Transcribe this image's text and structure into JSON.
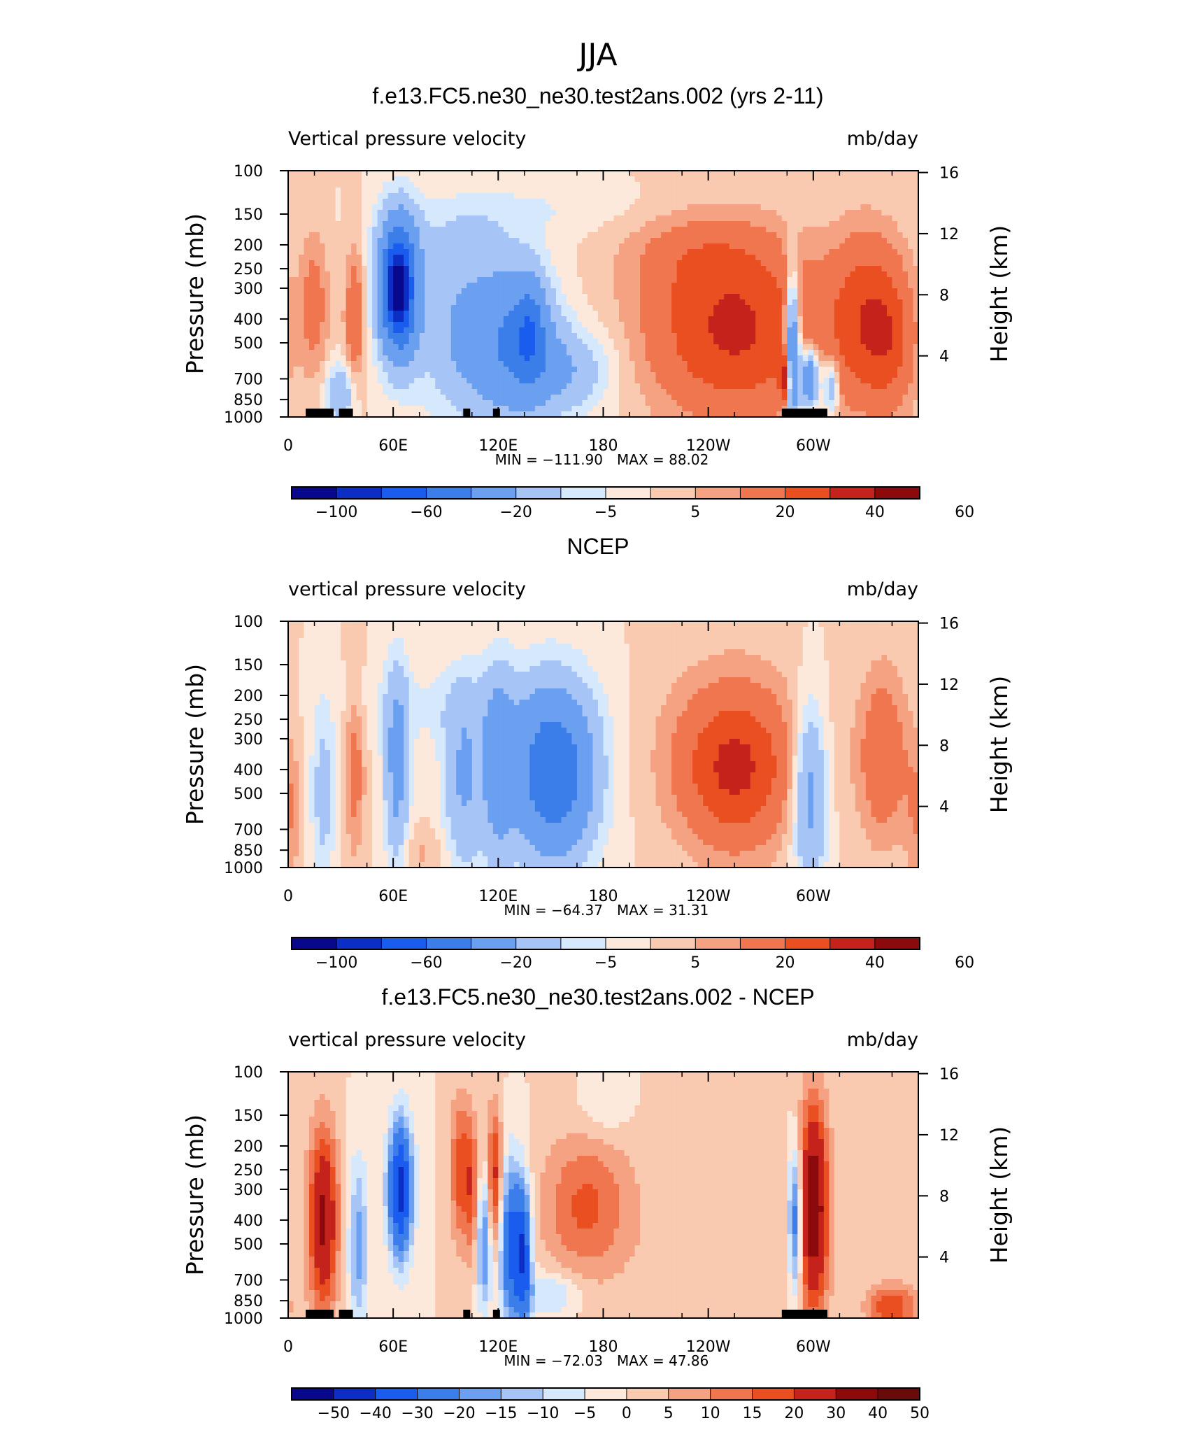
{
  "figure_title": "JJA",
  "colors": {
    "shades_11": [
      "#08088c",
      "#0c2ec4",
      "#1a5cee",
      "#3b7eea",
      "#6b9ff0",
      "#a6c5f6",
      "#d6e8fb",
      "#fde9db",
      "#f9c9b0",
      "#f5a283",
      "#f0764f",
      "#ea4f22",
      "#c4221a",
      "#8c0a0c"
    ],
    "diff_scale": [
      "#08088c",
      "#0c2ec4",
      "#1a5cee",
      "#3b7eea",
      "#6b9ff0",
      "#a6c5f6",
      "#d6e8fb",
      "#fde9db",
      "#f9c9b0",
      "#f5a283",
      "#f0764f",
      "#ea4f22",
      "#c4221a",
      "#8c0a0c",
      "#6a0a0a"
    ],
    "land": "#000000"
  },
  "chart_data": [
    {
      "type": "heatmap",
      "title": "f.e13.FC5.ne30_ne30.test2ans.002 (yrs 2-11)",
      "left_label": "Vertical pressure velocity",
      "right_label": "mb/day",
      "xlabel": "",
      "ylabel": "Pressure (mb)",
      "ylabel_right": "Height (km)",
      "x_ticks": [
        "0",
        "60E",
        "120E",
        "180",
        "120W",
        "60W"
      ],
      "y_ticks": [
        "100",
        "150",
        "200",
        "250",
        "300",
        "400",
        "500",
        "700",
        "850",
        "1000"
      ],
      "y_ticks_right": [
        "16",
        "12",
        "8",
        "4"
      ],
      "min_label": "MIN = −111.90",
      "max_label": "MAX =  88.02",
      "stats": {
        "min": -111.9,
        "max": 88.02
      },
      "colorbar_labels": [
        "−100",
        "−60",
        "−20",
        "−5",
        "5",
        "20",
        "40",
        "60"
      ],
      "blobs": [
        {
          "lon": 63,
          "p": 300,
          "w": 8,
          "h": 0.55,
          "v": -75
        },
        {
          "lon": 63,
          "p": 300,
          "w": 4,
          "h": 0.3,
          "v": -50
        },
        {
          "lon": 130,
          "p": 500,
          "w": 16,
          "h": 0.6,
          "v": -35
        },
        {
          "lon": 138,
          "p": 450,
          "w": 6,
          "h": 0.4,
          "v": -30
        },
        {
          "lon": 100,
          "p": 450,
          "w": 18,
          "h": 0.7,
          "v": -20
        },
        {
          "lon": 160,
          "p": 650,
          "w": 18,
          "h": 0.35,
          "v": -18
        },
        {
          "lon": 95,
          "p": 180,
          "w": 30,
          "h": 0.3,
          "v": -6
        },
        {
          "lon": 150,
          "p": 140,
          "w": 40,
          "h": 0.2,
          "v": -4
        },
        {
          "lon": 30,
          "p": 800,
          "w": 6,
          "h": 0.25,
          "v": -20
        },
        {
          "lon": 255,
          "p": 450,
          "w": 35,
          "h": 0.7,
          "v": 32
        },
        {
          "lon": 235,
          "p": 220,
          "w": 30,
          "h": 0.35,
          "v": 10
        },
        {
          "lon": 330,
          "p": 400,
          "w": 15,
          "h": 0.7,
          "v": 25
        },
        {
          "lon": 345,
          "p": 500,
          "w": 10,
          "h": 0.6,
          "v": 14
        },
        {
          "lon": 15,
          "p": 350,
          "w": 6,
          "h": 0.6,
          "v": 14
        },
        {
          "lon": 38,
          "p": 400,
          "w": 4,
          "h": 0.6,
          "v": 18
        },
        {
          "lon": 288,
          "p": 550,
          "w": 3,
          "h": 0.6,
          "v": -55
        },
        {
          "lon": 298,
          "p": 700,
          "w": 4,
          "h": 0.25,
          "v": -45
        },
        {
          "lon": 310,
          "p": 750,
          "w": 3,
          "h": 0.25,
          "v": -25
        },
        {
          "lon": 284,
          "p": 700,
          "w": 2,
          "h": 0.2,
          "v": 40
        }
      ],
      "land_spans": [
        [
          10,
          26
        ],
        [
          29,
          37
        ],
        [
          100,
          104
        ],
        [
          117,
          121
        ],
        [
          282,
          308
        ]
      ]
    },
    {
      "type": "heatmap",
      "title": "NCEP",
      "left_label": "vertical pressure velocity",
      "right_label": "mb/day",
      "xlabel": "",
      "ylabel": "Pressure (mb)",
      "ylabel_right": "Height (km)",
      "x_ticks": [
        "0",
        "60E",
        "120E",
        "180",
        "120W",
        "60W"
      ],
      "y_ticks": [
        "100",
        "150",
        "200",
        "250",
        "300",
        "400",
        "500",
        "700",
        "850",
        "1000"
      ],
      "y_ticks_right": [
        "16",
        "12",
        "8",
        "4"
      ],
      "min_label": "MIN = −64.37",
      "max_label": "MAX =  31.31",
      "stats": {
        "min": -64.37,
        "max": 31.31
      },
      "colorbar_labels": [
        "−100",
        "−60",
        "−20",
        "−5",
        "5",
        "20",
        "40",
        "60"
      ],
      "blobs": [
        {
          "lon": 152,
          "p": 420,
          "w": 14,
          "h": 0.6,
          "v": -40
        },
        {
          "lon": 150,
          "p": 400,
          "w": 22,
          "h": 0.8,
          "v": -20
        },
        {
          "lon": 120,
          "p": 400,
          "w": 6,
          "h": 0.8,
          "v": -22
        },
        {
          "lon": 100,
          "p": 450,
          "w": 8,
          "h": 0.75,
          "v": -20
        },
        {
          "lon": 62,
          "p": 400,
          "w": 5,
          "h": 0.85,
          "v": -25
        },
        {
          "lon": 20,
          "p": 500,
          "w": 5,
          "h": 0.7,
          "v": -14
        },
        {
          "lon": 298,
          "p": 500,
          "w": 7,
          "h": 0.75,
          "v": -28
        },
        {
          "lon": 90,
          "p": 220,
          "w": 40,
          "h": 0.35,
          "v": -6
        },
        {
          "lon": 255,
          "p": 400,
          "w": 20,
          "h": 0.6,
          "v": 24
        },
        {
          "lon": 255,
          "p": 350,
          "w": 35,
          "h": 0.8,
          "v": 10
        },
        {
          "lon": 340,
          "p": 350,
          "w": 10,
          "h": 0.7,
          "v": 18
        },
        {
          "lon": 38,
          "p": 400,
          "w": 4,
          "h": 0.7,
          "v": 14
        },
        {
          "lon": 0,
          "p": 600,
          "w": 5,
          "h": 0.6,
          "v": 10
        },
        {
          "lon": 75,
          "p": 880,
          "w": 10,
          "h": 0.2,
          "v": 6
        }
      ],
      "land_spans": []
    },
    {
      "type": "heatmap",
      "title": "f.e13.FC5.ne30_ne30.test2ans.002 - NCEP",
      "left_label": "vertical pressure velocity",
      "right_label": "mb/day",
      "xlabel": "",
      "ylabel": "Pressure (mb)",
      "ylabel_right": "Height (km)",
      "x_ticks": [
        "0",
        "60E",
        "120E",
        "180",
        "120W",
        "60W"
      ],
      "y_ticks": [
        "100",
        "150",
        "200",
        "250",
        "300",
        "400",
        "500",
        "700",
        "850",
        "1000"
      ],
      "y_ticks_right": [
        "16",
        "12",
        "8",
        "4"
      ],
      "min_label": "MIN = −72.03",
      "max_label": "MAX =  47.86",
      "stats": {
        "min": -72.03,
        "max": 47.86
      },
      "colorbar_labels": [
        "−50",
        "−40",
        "−30",
        "−20",
        "−15",
        "−10",
        "−5",
        "0",
        "5",
        "10",
        "15",
        "20",
        "30",
        "40",
        "50"
      ],
      "blobs": [
        {
          "lon": 20,
          "p": 400,
          "w": 6,
          "h": 0.75,
          "v": 32
        },
        {
          "lon": 64,
          "p": 300,
          "w": 5,
          "h": 0.55,
          "v": -45
        },
        {
          "lon": 128,
          "p": 500,
          "w": 5,
          "h": 0.65,
          "v": -35
        },
        {
          "lon": 112,
          "p": 500,
          "w": 3,
          "h": 0.55,
          "v": -22
        },
        {
          "lon": 135,
          "p": 550,
          "w": 3,
          "h": 0.55,
          "v": -28
        },
        {
          "lon": 150,
          "p": 800,
          "w": 12,
          "h": 0.18,
          "v": -12
        },
        {
          "lon": 40,
          "p": 500,
          "w": 4,
          "h": 0.7,
          "v": -18
        },
        {
          "lon": 98,
          "p": 250,
          "w": 4,
          "h": 0.6,
          "v": 18
        },
        {
          "lon": 118,
          "p": 280,
          "w": 3,
          "h": 0.6,
          "v": 24
        },
        {
          "lon": 105,
          "p": 300,
          "w": 3,
          "h": 0.6,
          "v": 16
        },
        {
          "lon": 170,
          "p": 350,
          "w": 18,
          "h": 0.6,
          "v": 16
        },
        {
          "lon": 300,
          "p": 350,
          "w": 6,
          "h": 0.85,
          "v": 38
        },
        {
          "lon": 290,
          "p": 400,
          "w": 3,
          "h": 0.6,
          "v": -32
        },
        {
          "lon": 345,
          "p": 900,
          "w": 10,
          "h": 0.18,
          "v": 20
        },
        {
          "lon": 180,
          "p": 140,
          "w": 10,
          "h": 0.25,
          "v": -6
        },
        {
          "lon": 250,
          "p": 500,
          "w": 40,
          "h": 0.8,
          "v": 4
        }
      ],
      "land_spans": [
        [
          10,
          26
        ],
        [
          29,
          37
        ],
        [
          100,
          104
        ],
        [
          117,
          121
        ],
        [
          282,
          308
        ]
      ]
    }
  ]
}
